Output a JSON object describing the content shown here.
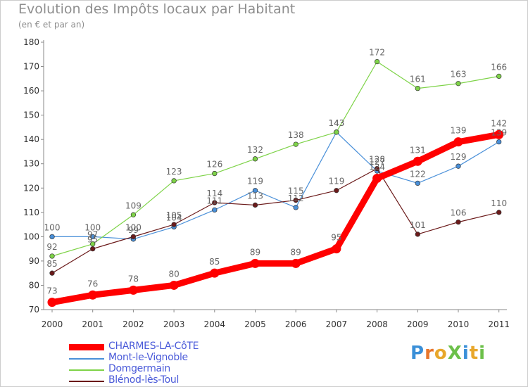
{
  "chart_data": {
    "type": "line",
    "title": "Evolution des Impôts locaux par Habitant",
    "subtitle": "(en € et par an)",
    "xlabel": "",
    "ylabel": "",
    "x": [
      "2000",
      "2001",
      "2002",
      "2003",
      "2004",
      "2005",
      "2006",
      "2007",
      "2008",
      "2009",
      "2010",
      "2011"
    ],
    "ylim": [
      70,
      180
    ],
    "yticks": [
      70,
      80,
      90,
      100,
      110,
      120,
      130,
      140,
      150,
      160,
      170,
      180
    ],
    "grid": false,
    "legend_position": "bottom-left",
    "series": [
      {
        "name": "Mont-le-Vignoble",
        "color": "#4a90d9",
        "values": [
          100,
          100,
          99,
          104,
          111,
          119,
          112,
          143,
          127,
          122,
          129,
          139
        ]
      },
      {
        "name": "Domgermain",
        "color": "#7ed348",
        "values": [
          92,
          97,
          109,
          123,
          126,
          132,
          138,
          143,
          172,
          161,
          163,
          166
        ]
      },
      {
        "name": "Blénod-lès-Toul",
        "color": "#6b1a1a",
        "values": [
          85,
          95,
          100,
          105,
          114,
          113,
          115,
          119,
          128,
          101,
          106,
          110
        ]
      },
      {
        "name": "CHARMES-LA-CôTE",
        "color": "#ff0000",
        "values": [
          73,
          76,
          78,
          80,
          85,
          89,
          89,
          95,
          124,
          131,
          139,
          142
        ],
        "emphasis": true
      }
    ],
    "legend_order": [
      "CHARMES-LA-CôTE",
      "Mont-le-Vignoble",
      "Domgermain",
      "Blénod-lès-Toul"
    ]
  },
  "logo": {
    "text": "ProXiti",
    "colors": [
      "#3a8fd8",
      "#e8762b",
      "#e8a72b",
      "#6cc04a",
      "#3a8fd8",
      "#e8a72b",
      "#6cc04a"
    ]
  }
}
